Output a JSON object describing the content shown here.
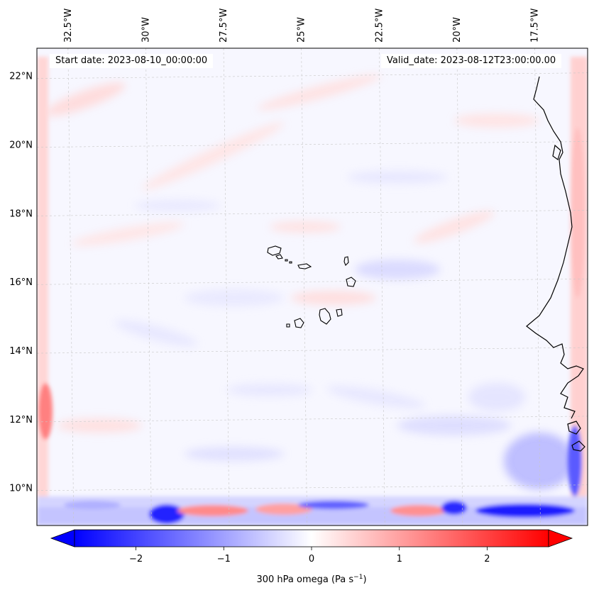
{
  "chart_data": {
    "type": "heatmap",
    "variable": "300 hPa omega",
    "units": "Pa s^-1",
    "colorbar_label_main": "300 hPa omega (Pa s",
    "colorbar_label_exp": "−1",
    "colorbar_label_close": ")",
    "colormap": "bwr",
    "value_range": [
      -2.7,
      2.7
    ],
    "colorbar_ticks": [
      -2,
      -1,
      0,
      1,
      2
    ],
    "colorbar_tick_labels": [
      "−2",
      "−1",
      "0",
      "1",
      "2"
    ],
    "lon_range": [
      -33.5,
      -15.8
    ],
    "lat_range": [
      8.9,
      22.8
    ],
    "lon_ticks": [
      -32.5,
      -30,
      -27.5,
      -25,
      -22.5,
      -20,
      -17.5
    ],
    "lon_tick_labels": [
      "32.5°W",
      "30°W",
      "27.5°W",
      "25°W",
      "22.5°W",
      "20°W",
      "17.5°W"
    ],
    "lat_ticks": [
      10,
      12,
      14,
      16,
      18,
      20,
      22
    ],
    "lat_tick_labels": [
      "10°N",
      "12°N",
      "14°N",
      "16°N",
      "18°N",
      "20°N",
      "22°N"
    ],
    "start_date_text": "Start date: 2023-08-10_00:00:00",
    "valid_date_text": "Valid_date: 2023-08-12T23:00:00.00",
    "features": [
      "coastline",
      "cape-verde-islands",
      "gridlines"
    ]
  },
  "colors": {
    "negative": "#0000ff",
    "zero": "#ffffff",
    "positive": "#ff0000",
    "coast": "#000000",
    "grid": "#c8c8c8"
  }
}
